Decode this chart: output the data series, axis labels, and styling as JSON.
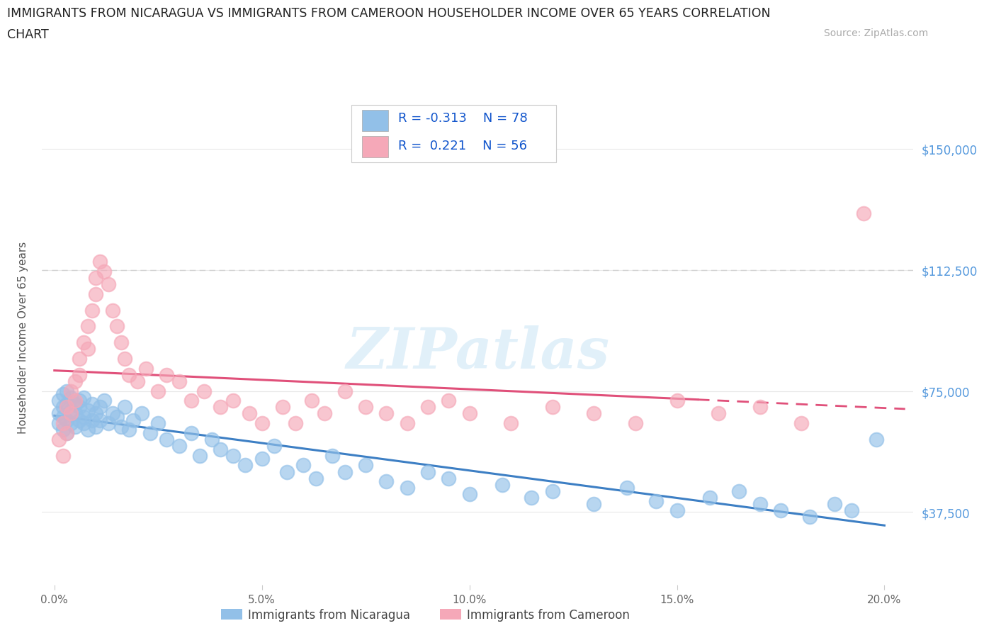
{
  "title_line1": "IMMIGRANTS FROM NICARAGUA VS IMMIGRANTS FROM CAMEROON HOUSEHOLDER INCOME OVER 65 YEARS CORRELATION",
  "title_line2": "CHART",
  "source_text": "Source: ZipAtlas.com",
  "ylabel": "Householder Income Over 65 years",
  "xlim_min": -0.003,
  "xlim_max": 0.207,
  "ylim_min": 15000,
  "ylim_max": 168000,
  "xticks": [
    0.0,
    0.05,
    0.1,
    0.15,
    0.2
  ],
  "xtick_labels": [
    "0.0%",
    "5.0%",
    "10.0%",
    "15.0%",
    "20.0%"
  ],
  "yticks": [
    37500,
    75000,
    112500,
    150000
  ],
  "ytick_labels": [
    "$37,500",
    "$75,000",
    "$112,500",
    "$150,000"
  ],
  "nicaragua_R": -0.313,
  "nicaragua_N": 78,
  "cameroon_R": 0.221,
  "cameroon_N": 56,
  "nicaragua_color": "#92c0e8",
  "cameroon_color": "#f5a8b8",
  "nicaragua_line_color": "#3d7fc4",
  "cameroon_line_color": "#e0507a",
  "dashed_line_y": 112500,
  "watermark": "ZIPatlas",
  "nicaragua_x": [
    0.001,
    0.001,
    0.001,
    0.002,
    0.002,
    0.002,
    0.002,
    0.003,
    0.003,
    0.003,
    0.003,
    0.004,
    0.004,
    0.004,
    0.005,
    0.005,
    0.005,
    0.006,
    0.006,
    0.006,
    0.007,
    0.007,
    0.007,
    0.008,
    0.008,
    0.009,
    0.009,
    0.01,
    0.01,
    0.011,
    0.011,
    0.012,
    0.013,
    0.014,
    0.015,
    0.016,
    0.017,
    0.018,
    0.019,
    0.021,
    0.023,
    0.025,
    0.027,
    0.03,
    0.033,
    0.035,
    0.038,
    0.04,
    0.043,
    0.046,
    0.05,
    0.053,
    0.056,
    0.06,
    0.063,
    0.067,
    0.07,
    0.075,
    0.08,
    0.085,
    0.09,
    0.095,
    0.1,
    0.108,
    0.115,
    0.12,
    0.13,
    0.138,
    0.145,
    0.15,
    0.158,
    0.165,
    0.17,
    0.175,
    0.182,
    0.188,
    0.192,
    0.198
  ],
  "nicaragua_y": [
    68000,
    72000,
    65000,
    70000,
    67000,
    74000,
    63000,
    71000,
    66000,
    75000,
    62000,
    69000,
    73000,
    65000,
    68000,
    71000,
    64000,
    72000,
    66000,
    70000,
    67000,
    73000,
    65000,
    69000,
    63000,
    71000,
    66000,
    68000,
    64000,
    70000,
    66000,
    72000,
    65000,
    68000,
    67000,
    64000,
    70000,
    63000,
    66000,
    68000,
    62000,
    65000,
    60000,
    58000,
    62000,
    55000,
    60000,
    57000,
    55000,
    52000,
    54000,
    58000,
    50000,
    52000,
    48000,
    55000,
    50000,
    52000,
    47000,
    45000,
    50000,
    48000,
    43000,
    46000,
    42000,
    44000,
    40000,
    45000,
    41000,
    38000,
    42000,
    44000,
    40000,
    38000,
    36000,
    40000,
    38000,
    60000
  ],
  "cameroon_x": [
    0.001,
    0.002,
    0.002,
    0.003,
    0.003,
    0.004,
    0.004,
    0.005,
    0.005,
    0.006,
    0.006,
    0.007,
    0.008,
    0.008,
    0.009,
    0.01,
    0.01,
    0.011,
    0.012,
    0.013,
    0.014,
    0.015,
    0.016,
    0.017,
    0.018,
    0.02,
    0.022,
    0.025,
    0.027,
    0.03,
    0.033,
    0.036,
    0.04,
    0.043,
    0.047,
    0.05,
    0.055,
    0.058,
    0.062,
    0.065,
    0.07,
    0.075,
    0.08,
    0.085,
    0.09,
    0.095,
    0.1,
    0.11,
    0.12,
    0.13,
    0.14,
    0.15,
    0.16,
    0.17,
    0.18,
    0.195
  ],
  "cameroon_y": [
    60000,
    65000,
    55000,
    70000,
    62000,
    68000,
    75000,
    72000,
    78000,
    80000,
    85000,
    90000,
    88000,
    95000,
    100000,
    105000,
    110000,
    115000,
    112000,
    108000,
    100000,
    95000,
    90000,
    85000,
    80000,
    78000,
    82000,
    75000,
    80000,
    78000,
    72000,
    75000,
    70000,
    72000,
    68000,
    65000,
    70000,
    65000,
    72000,
    68000,
    75000,
    70000,
    68000,
    65000,
    70000,
    72000,
    68000,
    65000,
    70000,
    68000,
    65000,
    72000,
    68000,
    70000,
    65000,
    130000
  ]
}
